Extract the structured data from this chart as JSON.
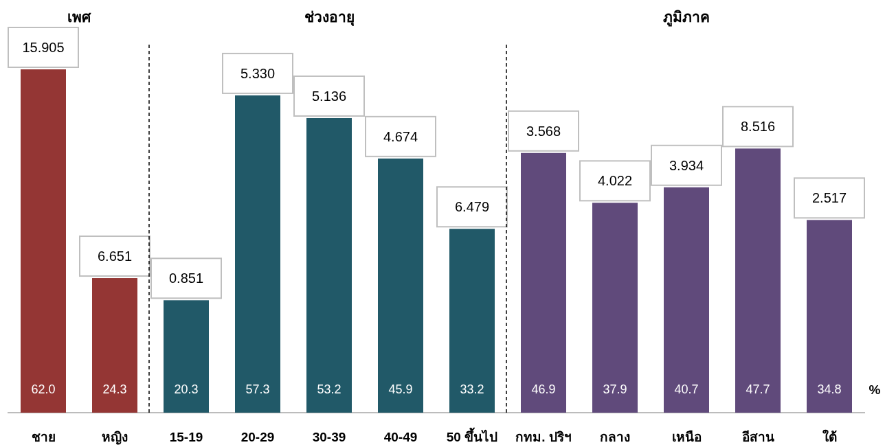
{
  "chart_data": [
    {
      "type": "bar",
      "title": "เพศ",
      "categories": [
        "ชาย",
        "หญิง"
      ],
      "values": [
        62.0,
        24.3
      ],
      "color": "#943634",
      "value_labels": [
        "62.0",
        "24.3"
      ],
      "annotations": [
        {
          "text": "15.905",
          "x": "ชาย",
          "y": 62.0
        },
        {
          "text": "6.651",
          "x": "หญิง",
          "y": 24.3
        }
      ]
    },
    {
      "type": "bar",
      "title": "ช่วงอายุ",
      "categories": [
        "15-19",
        "20-29",
        "30-39",
        "40-49",
        "50 ขึ้นไป"
      ],
      "values": [
        20.3,
        57.3,
        53.2,
        45.9,
        33.2
      ],
      "color": "#215968",
      "value_labels": [
        "20.3",
        "57.3",
        "53.2",
        "45.9",
        "33.2"
      ],
      "annotations": [
        {
          "text": "0.851",
          "x": "15-19",
          "y": 20.3
        },
        {
          "text": "5.330",
          "x": "20-29",
          "y": 57.3
        },
        {
          "text": "5.136",
          "x": "30-39",
          "y": 53.2
        },
        {
          "text": "4.674",
          "x": "40-49",
          "y": 45.9
        },
        {
          "text": "6.479",
          "x": "50 ขึ้นไป",
          "y": 33.2
        }
      ]
    },
    {
      "type": "bar",
      "title": "ภูมิภาค",
      "categories": [
        "กทม. ปริฯ",
        "กลาง",
        "เหนือ",
        "อีสาน",
        "ใต้"
      ],
      "values": [
        46.9,
        37.9,
        40.7,
        47.7,
        34.8
      ],
      "color": "#604a7b",
      "value_labels": [
        "46.9",
        "37.9",
        "40.7",
        "47.7",
        "34.8"
      ],
      "annotations": [
        {
          "text": "3.568",
          "x": "กทม. ปริฯ",
          "y": 46.9
        },
        {
          "text": "4.022",
          "x": "กลาง",
          "y": 37.9
        },
        {
          "text": "3.934",
          "x": "เหนือ",
          "y": 40.7
        },
        {
          "text": "8.516",
          "x": "อีสาน",
          "y": 47.7
        },
        {
          "text": "2.517",
          "x": "ใต้",
          "y": 34.8
        },
        "%"
      ]
    }
  ]
}
